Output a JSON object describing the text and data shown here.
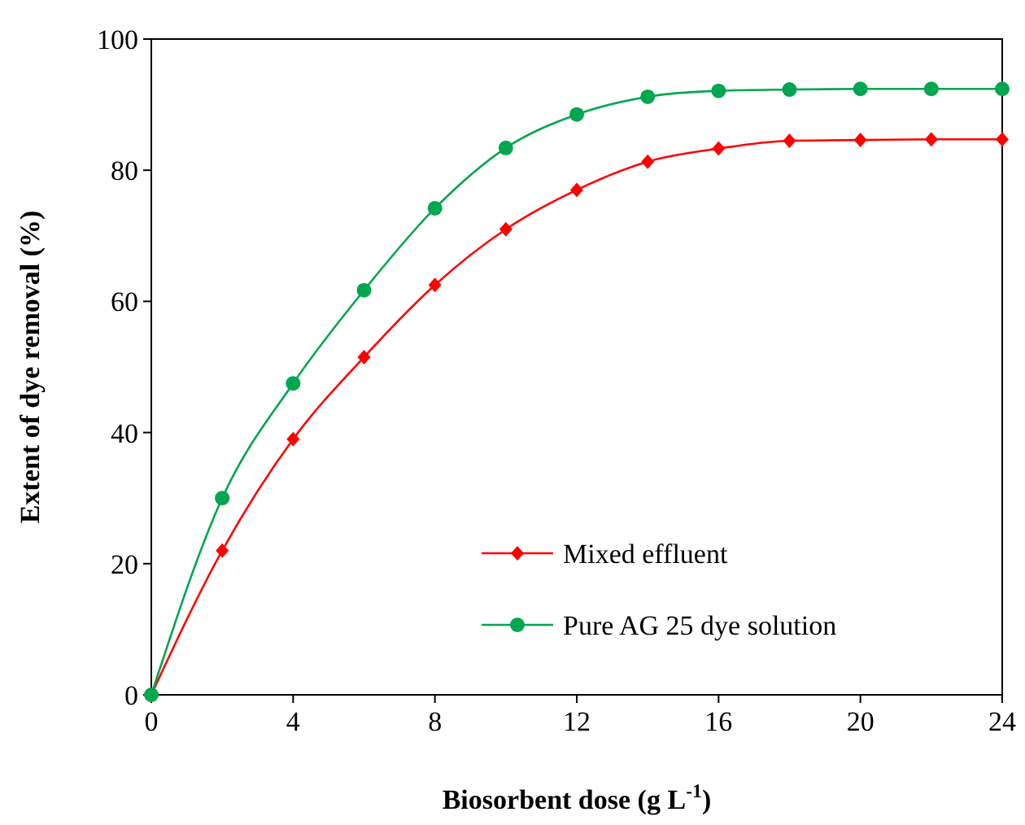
{
  "chart_data": {
    "type": "line",
    "xlabel": "Biosorbent dose (g L$^{-1}$)",
    "ylabel": "Extent of dye removal (%)",
    "x": [
      0,
      2,
      4,
      6,
      8,
      10,
      12,
      14,
      16,
      18,
      20,
      22,
      24
    ],
    "series": [
      {
        "name": "Mixed effluent",
        "color": "#ff0000",
        "marker": "diamond",
        "values": [
          0,
          22,
          39,
          51.5,
          62.5,
          71,
          77,
          81.3,
          83.3,
          84.5,
          84.6,
          84.7,
          84.7
        ]
      },
      {
        "name": "Pure AG 25 dye solution",
        "color": "#00a650",
        "marker": "circle",
        "values": [
          0,
          30,
          47.5,
          61.7,
          74.2,
          83.4,
          88.5,
          91.2,
          92.1,
          92.3,
          92.4,
          92.4,
          92.4
        ]
      }
    ],
    "xlim": [
      0,
      24
    ],
    "xticks": [
      0,
      4,
      8,
      12,
      16,
      20,
      24
    ],
    "ylim": [
      0,
      100
    ],
    "yticks": [
      0,
      20,
      40,
      60,
      80,
      100
    ],
    "grid": false,
    "legend": "bottom right",
    "line_style": "solid"
  }
}
